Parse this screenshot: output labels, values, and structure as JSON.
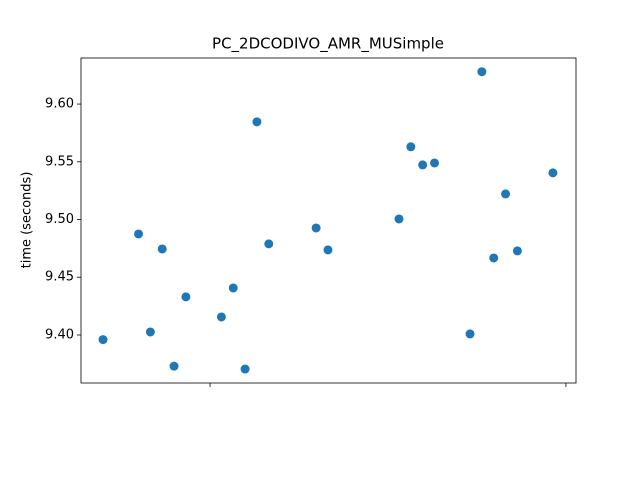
{
  "chart_data": {
    "type": "scatter",
    "title": "PC_2DCODIVO_AMR_MUSimple",
    "y_label": "time (seconds)",
    "x": [
      0,
      3,
      4,
      5,
      6,
      7,
      10,
      11,
      12,
      13,
      14,
      18,
      19,
      25,
      26,
      27,
      28,
      31,
      32,
      33,
      34,
      35,
      38
    ],
    "values": [
      9.396,
      9.4875,
      9.4026,
      9.4745,
      9.373,
      9.433,
      9.4156,
      9.4407,
      9.3705,
      9.5846,
      9.4789,
      9.4927,
      9.4737,
      9.5005,
      9.563,
      9.5473,
      9.549,
      9.4009,
      9.628,
      9.4667,
      9.5222,
      9.4728,
      9.5404
    ],
    "color": "#1f77b4",
    "xlim": [
      -1.86,
      39.95
    ],
    "xticks": [
      9.04,
      39.1
    ],
    "ylim": [
      9.3584,
      9.6399
    ],
    "yticks": [
      {
        "value": 9.4,
        "label": "9.40"
      },
      {
        "value": 9.45,
        "label": "9.45"
      },
      {
        "value": 9.5,
        "label": "9.50"
      },
      {
        "value": 9.55,
        "label": "9.55"
      },
      {
        "value": 9.6,
        "label": "9.60"
      }
    ],
    "grid": false
  }
}
